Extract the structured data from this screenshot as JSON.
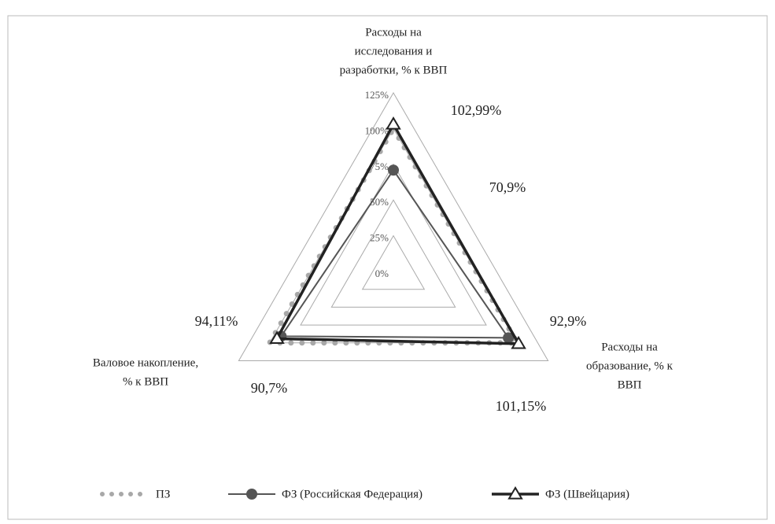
{
  "chart_data": {
    "type": "radar",
    "axes": [
      {
        "label": [
          "Расходы на",
          "исследования и",
          "разработки, % к ВВП"
        ]
      },
      {
        "label": [
          "Расходы на",
          "образование, % к",
          "ВВП"
        ]
      },
      {
        "label": [
          "Валовое накопление,",
          "% к ВВП"
        ]
      }
    ],
    "rlim": [
      0,
      125
    ],
    "rticks": [
      {
        "value": 0,
        "label": "0%"
      },
      {
        "value": 25,
        "label": "25%"
      },
      {
        "value": 50,
        "label": "50%"
      },
      {
        "value": 75,
        "label": "75%"
      },
      {
        "value": 100,
        "label": "100%"
      },
      {
        "value": 125,
        "label": "125%"
      }
    ],
    "series": [
      {
        "name": "ПЗ",
        "color": "#a8a8a8",
        "style": "dotted",
        "values": [
          100,
          100,
          100
        ]
      },
      {
        "name": "ФЗ (Российская Федерация)",
        "color": "#555555",
        "marker": "circle",
        "values": [
          70.9,
          92.9,
          90.7
        ],
        "value_labels": [
          "70,9%",
          "92,9%",
          "90,7%"
        ]
      },
      {
        "name": "ФЗ (Швейцария)",
        "color": "#222222",
        "marker": "triangle",
        "values": [
          102.99,
          101.15,
          94.11
        ],
        "value_labels": [
          "102,99%",
          "101,15%",
          "94,11%"
        ]
      }
    ]
  }
}
